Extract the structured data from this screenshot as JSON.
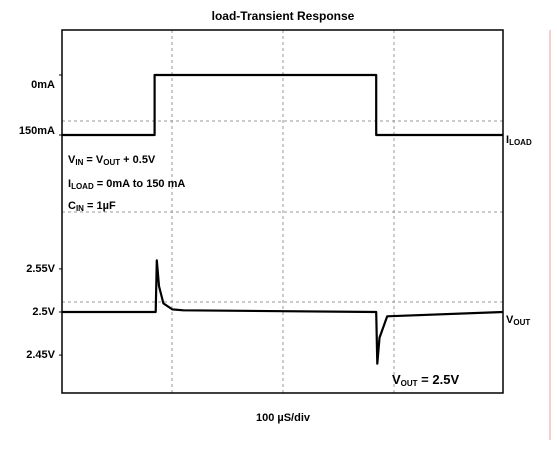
{
  "chart_data": [
    {
      "type": "line",
      "title": "load-Transient Response",
      "xlim": [
        0,
        400
      ],
      "ylim": [
        342.5,
        -112.5
      ],
      "yticks": [
        {
          "value": 0,
          "label": "0mA"
        },
        {
          "value": 150,
          "label": "150mA"
        }
      ],
      "series": [
        {
          "name": [
            "I",
            {
              "sub": "LOAD"
            }
          ],
          "color": "#000000",
          "x": [
            0,
            84,
            84,
            285,
            285,
            400
          ],
          "values": [
            150,
            150,
            0,
            0,
            150,
            150
          ]
        }
      ],
      "annotations": [
        [
          "V",
          {
            "sub": "IN"
          },
          " = V",
          {
            "sub": "OUT"
          },
          " + 0.5V"
        ],
        [
          "I",
          {
            "sub": "LOAD"
          },
          " = 0mA to 150 mA"
        ],
        [
          "C",
          {
            "sub": "IN"
          },
          " = 1µF"
        ]
      ]
    },
    {
      "type": "line",
      "xlabel": "100 µS/div",
      "xlim": [
        0,
        400
      ],
      "ylim": [
        2.406,
        2.616
      ],
      "yticks": [
        {
          "value": 2.55,
          "label": "2.55V"
        },
        {
          "value": 2.5,
          "label": "2.5V"
        },
        {
          "value": 2.45,
          "label": "2.45V"
        }
      ],
      "series": [
        {
          "name": [
            "V",
            {
              "sub": "OUT"
            }
          ],
          "color": "#000000",
          "x": [
            0,
            85,
            86,
            88,
            92,
            100,
            110,
            285,
            286,
            288,
            295,
            400
          ],
          "values": [
            2.5,
            2.5,
            2.56,
            2.53,
            2.51,
            2.503,
            2.502,
            2.5,
            2.44,
            2.47,
            2.495,
            2.5
          ]
        }
      ],
      "annotations": [
        [
          "V",
          {
            "sub": "OUT"
          },
          " = 2.5V"
        ]
      ]
    }
  ]
}
